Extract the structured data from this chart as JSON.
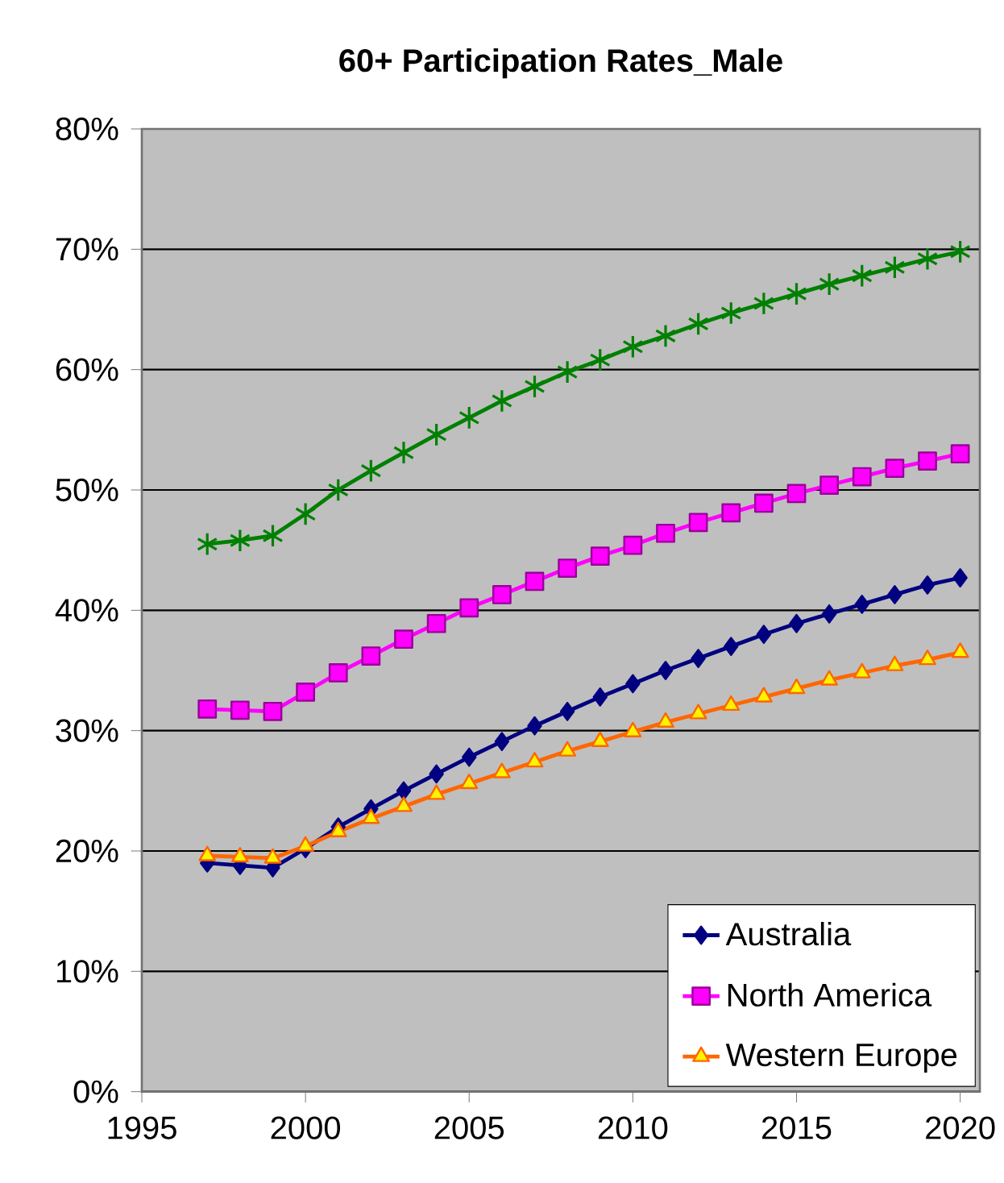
{
  "chart_data": {
    "type": "line",
    "title": "60+ Participation Rates_Male",
    "x": [
      1997,
      1998,
      1999,
      2000,
      2001,
      2002,
      2003,
      2004,
      2005,
      2006,
      2007,
      2008,
      2009,
      2010,
      2011,
      2012,
      2013,
      2014,
      2015,
      2016,
      2017,
      2018,
      2019,
      2020
    ],
    "series": [
      {
        "name": "Australia",
        "color": "#000080",
        "marker": "diamond",
        "values": [
          19.0,
          18.8,
          18.6,
          20.2,
          22.0,
          23.5,
          25.0,
          26.4,
          27.8,
          29.1,
          30.4,
          31.6,
          32.8,
          33.9,
          35.0,
          36.0,
          37.0,
          38.0,
          38.9,
          39.7,
          40.5,
          41.3,
          42.1,
          42.7
        ]
      },
      {
        "name": "North America",
        "color": "#ff00ff",
        "marker": "square",
        "values": [
          31.8,
          31.7,
          31.6,
          33.2,
          34.8,
          36.2,
          37.6,
          38.9,
          40.2,
          41.3,
          42.4,
          43.5,
          44.5,
          45.4,
          46.4,
          47.3,
          48.1,
          48.9,
          49.7,
          50.4,
          51.1,
          51.8,
          52.4,
          53.0
        ]
      },
      {
        "name": "Western Europe",
        "color": "#ff6600",
        "marker": "triangle",
        "values": [
          19.6,
          19.5,
          19.4,
          20.4,
          21.6,
          22.7,
          23.7,
          24.7,
          25.6,
          26.5,
          27.4,
          28.3,
          29.1,
          29.9,
          30.7,
          31.4,
          32.1,
          32.8,
          33.5,
          34.2,
          34.8,
          35.4,
          35.9,
          36.5
        ]
      },
      {
        "color": "#008000",
        "marker": "cross",
        "values": [
          45.5,
          45.8,
          46.2,
          48.0,
          50.0,
          51.6,
          53.1,
          54.6,
          56.0,
          57.4,
          58.6,
          59.8,
          60.8,
          61.9,
          62.8,
          63.8,
          64.7,
          65.5,
          66.3,
          67.1,
          67.8,
          68.5,
          69.2,
          69.8
        ]
      }
    ],
    "xlim": [
      1995,
      2020.6
    ],
    "xticks": [
      1995,
      2000,
      2005,
      2010,
      2015,
      2020
    ],
    "ylim": [
      0,
      80
    ],
    "yticks": [
      {
        "value": 0,
        "label": "0%"
      },
      {
        "value": 10,
        "label": "10%"
      },
      {
        "value": 20,
        "label": "20%"
      },
      {
        "value": 30,
        "label": "30%"
      },
      {
        "value": 40,
        "label": "40%"
      },
      {
        "value": 50,
        "label": "50%"
      },
      {
        "value": 60,
        "label": "60%"
      },
      {
        "value": 70,
        "label": "70%"
      },
      {
        "value": 80,
        "label": "80%"
      }
    ],
    "grid": "y",
    "legend": "bottom right",
    "line_style": "solid"
  }
}
